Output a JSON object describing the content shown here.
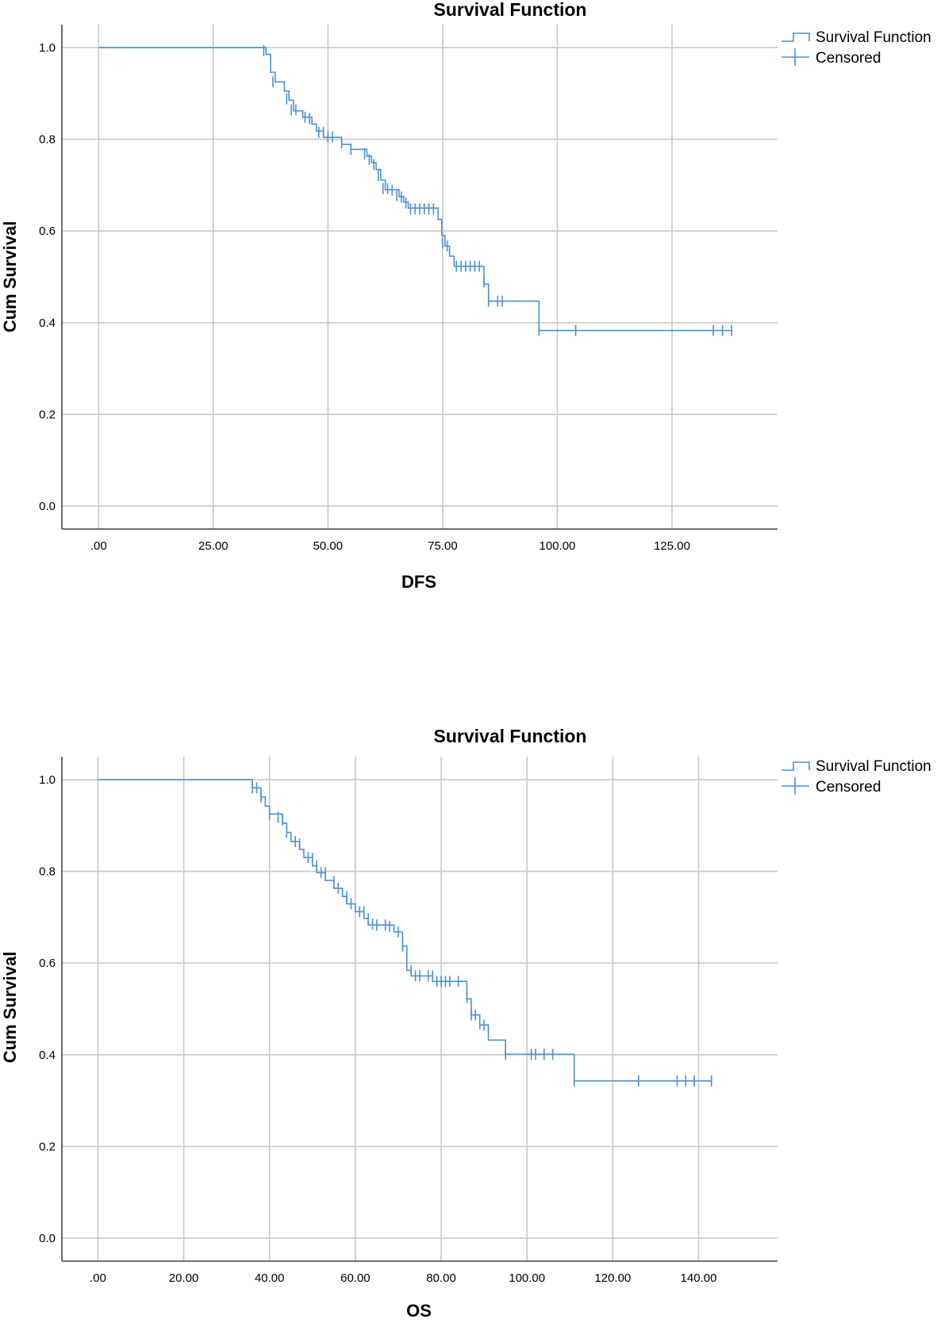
{
  "chart_data": [
    {
      "type": "line",
      "subtype": "kaplan-meier",
      "title": "Survival Function",
      "xlabel": "DFS",
      "ylabel": "Cum Survival",
      "xlim": [
        -8,
        148
      ],
      "ylim": [
        -0.05,
        1.05
      ],
      "xticks": [
        0,
        25,
        50,
        75,
        100,
        125
      ],
      "xtick_labels": [
        ".00",
        "25.00",
        "50.00",
        "75.00",
        "100.00",
        "125.00"
      ],
      "yticks": [
        0.0,
        0.2,
        0.4,
        0.6,
        0.8,
        1.0
      ],
      "ytick_labels": [
        "0.0",
        "0.2",
        "0.4",
        "0.6",
        "0.8",
        "1.0"
      ],
      "grid": true,
      "legend_position": "top-right",
      "legend": [
        "Survival Function",
        "Censored"
      ],
      "color": "#4a90d9",
      "series": [
        {
          "name": "Survival Function",
          "steps": [
            [
              0,
              1.0
            ],
            [
              36.5,
              0.985
            ],
            [
              37.5,
              0.946
            ],
            [
              38.5,
              0.925
            ],
            [
              40.5,
              0.905
            ],
            [
              41.5,
              0.885
            ],
            [
              42.5,
              0.862
            ],
            [
              44.5,
              0.848
            ],
            [
              46.5,
              0.833
            ],
            [
              47.5,
              0.818
            ],
            [
              49.0,
              0.804
            ],
            [
              53.0,
              0.789
            ],
            [
              55.0,
              0.778
            ],
            [
              58.5,
              0.763
            ],
            [
              59.5,
              0.749
            ],
            [
              60.5,
              0.734
            ],
            [
              61.5,
              0.711
            ],
            [
              62.5,
              0.69
            ],
            [
              65.5,
              0.675
            ],
            [
              66.5,
              0.663
            ],
            [
              67.5,
              0.65
            ],
            [
              74.0,
              0.625
            ],
            [
              74.8,
              0.59
            ],
            [
              75.5,
              0.567
            ],
            [
              76.5,
              0.545
            ],
            [
              77.5,
              0.523
            ],
            [
              84.0,
              0.484
            ],
            [
              85.0,
              0.447
            ],
            [
              96.0,
              0.383
            ]
          ],
          "end_x": 138
        },
        {
          "name": "Censored",
          "points": [
            [
              36,
              0.993
            ],
            [
              38,
              0.925
            ],
            [
              41,
              0.888
            ],
            [
              42,
              0.864
            ],
            [
              43,
              0.864
            ],
            [
              45,
              0.848
            ],
            [
              46,
              0.845
            ],
            [
              48,
              0.815
            ],
            [
              49,
              0.815
            ],
            [
              50,
              0.805
            ],
            [
              51,
              0.805
            ],
            [
              53,
              0.792
            ],
            [
              55,
              0.778
            ],
            [
              58,
              0.768
            ],
            [
              59,
              0.756
            ],
            [
              60,
              0.745
            ],
            [
              61,
              0.721
            ],
            [
              62,
              0.692
            ],
            [
              63,
              0.692
            ],
            [
              64,
              0.689
            ],
            [
              65,
              0.677
            ],
            [
              66,
              0.674
            ],
            [
              67,
              0.661
            ],
            [
              68,
              0.648
            ],
            [
              69,
              0.648
            ],
            [
              70,
              0.648
            ],
            [
              71,
              0.648
            ],
            [
              72,
              0.648
            ],
            [
              73,
              0.648
            ],
            [
              75,
              0.574
            ],
            [
              76,
              0.567
            ],
            [
              78,
              0.523
            ],
            [
              79,
              0.523
            ],
            [
              80,
              0.523
            ],
            [
              81,
              0.523
            ],
            [
              82,
              0.523
            ],
            [
              83,
              0.523
            ],
            [
              84,
              0.489
            ],
            [
              85,
              0.447
            ],
            [
              87,
              0.447
            ],
            [
              88,
              0.447
            ],
            [
              96,
              0.383
            ],
            [
              104,
              0.383
            ],
            [
              134,
              0.383
            ],
            [
              136,
              0.383
            ],
            [
              138,
              0.383
            ]
          ]
        }
      ]
    },
    {
      "type": "line",
      "subtype": "kaplan-meier",
      "title": "Survival Function",
      "xlabel": "OS",
      "ylabel": "Cum Survival",
      "xlim": [
        -8.4,
        158.4
      ],
      "ylim": [
        -0.05,
        1.05
      ],
      "xticks": [
        0,
        20,
        40,
        60,
        80,
        100,
        120,
        140
      ],
      "xtick_labels": [
        ".00",
        "20.00",
        "40.00",
        "60.00",
        "80.00",
        "100.00",
        "120.00",
        "140.00"
      ],
      "yticks": [
        0.0,
        0.2,
        0.4,
        0.6,
        0.8,
        1.0
      ],
      "ytick_labels": [
        "0.0",
        "0.2",
        "0.4",
        "0.6",
        "0.8",
        "1.0"
      ],
      "grid": true,
      "legend_position": "top-right",
      "legend": [
        "Survival Function",
        "Censored"
      ],
      "color": "#4a90d9",
      "series": [
        {
          "name": "Survival Function",
          "steps": [
            [
              0,
              1.0
            ],
            [
              36.0,
              0.982
            ],
            [
              38.0,
              0.962
            ],
            [
              39.0,
              0.942
            ],
            [
              40.0,
              0.925
            ],
            [
              43.0,
              0.905
            ],
            [
              44.0,
              0.885
            ],
            [
              45.0,
              0.865
            ],
            [
              47.0,
              0.848
            ],
            [
              48.0,
              0.83
            ],
            [
              50.0,
              0.812
            ],
            [
              51.0,
              0.797
            ],
            [
              53.0,
              0.78
            ],
            [
              55.0,
              0.763
            ],
            [
              57.0,
              0.745
            ],
            [
              58.0,
              0.729
            ],
            [
              60.0,
              0.712
            ],
            [
              62.0,
              0.697
            ],
            [
              63.0,
              0.683
            ],
            [
              69.0,
              0.668
            ],
            [
              71.0,
              0.637
            ],
            [
              72.0,
              0.584
            ],
            [
              73.0,
              0.572
            ],
            [
              78.0,
              0.56
            ],
            [
              86.0,
              0.522
            ],
            [
              87.0,
              0.487
            ],
            [
              89.0,
              0.465
            ],
            [
              91.0,
              0.432
            ],
            [
              95.0,
              0.401
            ],
            [
              111.0,
              0.343
            ]
          ],
          "end_x": 143
        },
        {
          "name": "Censored",
          "points": [
            [
              36,
              0.982
            ],
            [
              37,
              0.982
            ],
            [
              38,
              0.962
            ],
            [
              40,
              0.925
            ],
            [
              42,
              0.918
            ],
            [
              43,
              0.912
            ],
            [
              44,
              0.885
            ],
            [
              46,
              0.865
            ],
            [
              47,
              0.86
            ],
            [
              49,
              0.83
            ],
            [
              50,
              0.828
            ],
            [
              51,
              0.812
            ],
            [
              52,
              0.797
            ],
            [
              53,
              0.797
            ],
            [
              55,
              0.777
            ],
            [
              56,
              0.763
            ],
            [
              58,
              0.745
            ],
            [
              59,
              0.729
            ],
            [
              61,
              0.712
            ],
            [
              62,
              0.712
            ],
            [
              63,
              0.697
            ],
            [
              64,
              0.685
            ],
            [
              65,
              0.683
            ],
            [
              67,
              0.683
            ],
            [
              68,
              0.68
            ],
            [
              70,
              0.668
            ],
            [
              71,
              0.637
            ],
            [
              73,
              0.584
            ],
            [
              74,
              0.572
            ],
            [
              75,
              0.572
            ],
            [
              77,
              0.572
            ],
            [
              78,
              0.572
            ],
            [
              79,
              0.56
            ],
            [
              80,
              0.56
            ],
            [
              81,
              0.56
            ],
            [
              82,
              0.56
            ],
            [
              84,
              0.56
            ],
            [
              86,
              0.525
            ],
            [
              87,
              0.487
            ],
            [
              88,
              0.487
            ],
            [
              89,
              0.468
            ],
            [
              90,
              0.465
            ],
            [
              95,
              0.401
            ],
            [
              101,
              0.401
            ],
            [
              102,
              0.401
            ],
            [
              104,
              0.401
            ],
            [
              106,
              0.401
            ],
            [
              111,
              0.343
            ],
            [
              126,
              0.343
            ],
            [
              135,
              0.343
            ],
            [
              137,
              0.343
            ],
            [
              139,
              0.343
            ],
            [
              143,
              0.343
            ]
          ]
        }
      ]
    }
  ]
}
